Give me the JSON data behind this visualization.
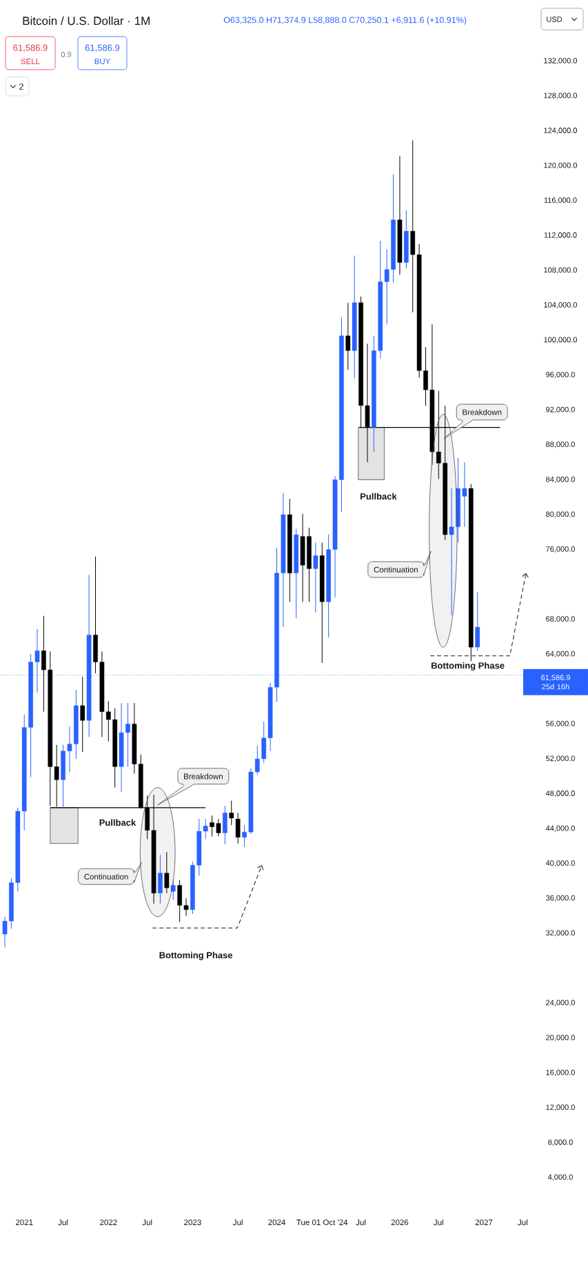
{
  "chart_data": {
    "type": "candlestick",
    "title": "Bitcoin / U.S. Dollar · 1M",
    "subtitle": "O63,325.0 H71,374.9 L58,888.0 C70,250.1 +6,911.6 (+10.91%)",
    "categories": [
      null,
      null,
      null,
      "2021",
      null,
      null,
      null,
      null,
      null,
      "Jul",
      null,
      null,
      null,
      null,
      null,
      null,
      "2022",
      null,
      null,
      null,
      null,
      null,
      "Jul",
      null,
      null,
      null,
      null,
      null,
      null,
      "2023",
      null,
      null,
      null,
      null,
      null,
      null,
      "Jul",
      null,
      null,
      null,
      null,
      null,
      "2024",
      null,
      null,
      null,
      null,
      null,
      null,
      "Tue 01 Oct '24",
      null,
      null,
      null,
      null,
      null,
      "Jul",
      null,
      null,
      null,
      null,
      null,
      "2026",
      null,
      null,
      null,
      null,
      null,
      "Jul",
      null,
      null,
      null,
      null,
      null,
      null,
      "2027",
      null,
      null,
      null,
      null,
      null,
      "Jul",
      null,
      null
    ],
    "ohlc": [
      [
        31900,
        33900,
        30400,
        33400
      ],
      [
        33400,
        38300,
        32500,
        37800
      ],
      [
        37800,
        46400,
        36800,
        46000
      ],
      [
        46000,
        57100,
        43800,
        55600
      ],
      [
        55600,
        64000,
        49900,
        63100
      ],
      [
        63100,
        66900,
        59600,
        64400
      ],
      [
        64400,
        68400,
        57400,
        62200
      ],
      [
        62200,
        64300,
        46600,
        51100
      ],
      [
        51100,
        53600,
        46500,
        49600
      ],
      [
        49600,
        53600,
        46400,
        52900
      ],
      [
        52900,
        55700,
        50500,
        53700
      ],
      [
        53700,
        59900,
        52000,
        58100
      ],
      [
        58100,
        61400,
        52800,
        56400
      ],
      [
        56400,
        73100,
        54500,
        66200
      ],
      [
        66200,
        75200,
        61800,
        63100
      ],
      [
        63100,
        64300,
        54500,
        57400
      ],
      [
        57400,
        58600,
        54000,
        56500
      ],
      [
        56500,
        57800,
        48700,
        51100
      ],
      [
        51100,
        58400,
        48200,
        55000
      ],
      [
        55000,
        58400,
        51100,
        56000
      ],
      [
        56000,
        58400,
        50300,
        51400
      ],
      [
        51400,
        52500,
        46300,
        46400
      ],
      [
        46400,
        47800,
        42800,
        43800
      ],
      [
        43800,
        47900,
        35400,
        36600
      ],
      [
        36600,
        41000,
        35400,
        38900
      ],
      [
        38900,
        41300,
        36600,
        37200
      ],
      [
        36800,
        38100,
        35800,
        37500
      ],
      [
        37500,
        38100,
        33300,
        35200
      ],
      [
        35200,
        36000,
        34000,
        34700
      ],
      [
        34700,
        40200,
        34200,
        39800
      ],
      [
        39800,
        45100,
        38600,
        43700
      ],
      [
        43700,
        45100,
        42800,
        44300
      ],
      [
        44700,
        45500,
        43100,
        44200
      ],
      [
        44600,
        45100,
        43100,
        43500
      ],
      [
        43500,
        46600,
        42200,
        45800
      ],
      [
        45800,
        47200,
        44400,
        45200
      ],
      [
        45100,
        45800,
        42300,
        43000
      ],
      [
        43000,
        44400,
        41900,
        43600
      ],
      [
        43600,
        50900,
        43400,
        50500
      ],
      [
        50500,
        53500,
        50200,
        52000
      ],
      [
        52000,
        56300,
        51500,
        54400
      ],
      [
        54400,
        60700,
        52900,
        60200
      ],
      [
        60200,
        76200,
        58500,
        73300
      ],
      [
        73300,
        82500,
        67100,
        80000
      ],
      [
        80000,
        81800,
        70000,
        73300
      ],
      [
        73300,
        78400,
        68100,
        77700
      ],
      [
        77500,
        80100,
        70000,
        74200
      ],
      [
        77500,
        78500,
        70000,
        73800
      ],
      [
        73800,
        76800,
        68800,
        75300
      ],
      [
        75300,
        76800,
        63000,
        70000
      ],
      [
        70000,
        77700,
        65900,
        76000
      ],
      [
        76000,
        84400,
        70500,
        84000
      ],
      [
        84000,
        102600,
        80300,
        100500
      ],
      [
        100500,
        104300,
        96600,
        98800
      ],
      [
        98800,
        109700,
        95600,
        104300
      ],
      [
        104300,
        105000,
        90000,
        92500
      ],
      [
        92500,
        99600,
        86000,
        90000
      ],
      [
        90000,
        100500,
        87200,
        98800
      ],
      [
        98800,
        111400,
        97900,
        106700
      ],
      [
        106700,
        110400,
        101800,
        108100
      ],
      [
        108100,
        119000,
        106600,
        113800
      ],
      [
        113800,
        121100,
        107500,
        108900
      ],
      [
        108900,
        114900,
        108200,
        112500
      ],
      [
        112500,
        122900,
        103200,
        109800
      ],
      [
        109800,
        111000,
        95700,
        96500
      ],
      [
        96500,
        99200,
        92500,
        94300
      ],
      [
        94300,
        101800,
        85700,
        87200
      ],
      [
        87200,
        94200,
        84100,
        85900
      ],
      [
        85900,
        92500,
        77100,
        77700
      ],
      [
        77700,
        83000,
        68500,
        78600
      ],
      [
        78600,
        86500,
        76800,
        83000
      ],
      [
        82100,
        86000,
        78600,
        83000
      ],
      [
        83000,
        83500,
        63200,
        64800
      ],
      [
        64800,
        71100,
        64400,
        67100
      ],
      null,
      null,
      null,
      null,
      null,
      null,
      null,
      null,
      null
    ],
    "colors": [
      "#2962ff",
      "#2962ff",
      "#2962ff",
      "#2962ff",
      "#2962ff",
      "#2962ff",
      "#000000",
      "#000000",
      "#000000",
      "#2962ff",
      "#2962ff",
      "#2962ff",
      "#000000",
      "#2962ff",
      "#000000",
      "#000000",
      "#000000",
      "#000000",
      "#2962ff",
      "#2962ff",
      "#000000",
      "#000000",
      "#000000",
      "#000000",
      "#2962ff",
      "#000000",
      "#2962ff",
      "#000000",
      "#000000",
      "#2962ff",
      "#2962ff",
      "#2962ff",
      "#000000",
      "#000000",
      "#2962ff",
      "#000000",
      "#000000",
      "#2962ff",
      "#2962ff",
      "#2962ff",
      "#2962ff",
      "#2962ff",
      "#2962ff",
      "#2962ff",
      "#000000",
      "#2962ff",
      "#000000",
      "#000000",
      "#2962ff",
      "#000000",
      "#2962ff",
      "#2962ff",
      "#2962ff",
      "#000000",
      "#2962ff",
      "#000000",
      "#000000",
      "#2962ff",
      "#2962ff",
      "#2962ff",
      "#2962ff",
      "#000000",
      "#2962ff",
      "#000000",
      "#000000",
      "#000000",
      "#000000",
      "#000000",
      "#000000",
      "#2962ff",
      "#2962ff",
      "#2962ff",
      "#000000",
      "#2962ff",
      null,
      null,
      null,
      null,
      null,
      null,
      null,
      null,
      null
    ],
    "ylim": [
      4000,
      132000
    ],
    "yticks": [
      {
        "value": 4000,
        "label": "4,000.0"
      },
      {
        "value": 8000,
        "label": "8,000.0"
      },
      {
        "value": 12000,
        "label": "12,000.0"
      },
      {
        "value": 16000,
        "label": "16,000.0"
      },
      {
        "value": 20000,
        "label": "20,000.0"
      },
      {
        "value": 24000,
        "label": "24,000.0"
      },
      {
        "value": 32000,
        "label": "32,000.0"
      },
      {
        "value": 36000,
        "label": "36,000.0"
      },
      {
        "value": 40000,
        "label": "40,000.0"
      },
      {
        "value": 44000,
        "label": "44,000.0"
      },
      {
        "value": 48000,
        "label": "48,000.0"
      },
      {
        "value": 52000,
        "label": "52,000.0"
      },
      {
        "value": 56000,
        "label": "56,000.0"
      },
      {
        "value": 64000,
        "label": "64,000.0"
      },
      {
        "value": 68000,
        "label": "68,000.0"
      },
      {
        "value": 76000,
        "label": "76,000.0"
      },
      {
        "value": 80000,
        "label": "80,000.0"
      },
      {
        "value": 84000,
        "label": "84,000.0"
      },
      {
        "value": 88000,
        "label": "88,000.0"
      },
      {
        "value": 92000,
        "label": "92,000.0"
      },
      {
        "value": 96000,
        "label": "96,000.0"
      },
      {
        "value": 100000,
        "label": "100,000.0"
      },
      {
        "value": 104000,
        "label": "104,000.0"
      },
      {
        "value": 108000,
        "label": "108,000.0"
      },
      {
        "value": 112000,
        "label": "112,000.0"
      },
      {
        "value": 116000,
        "label": "116,000.0"
      },
      {
        "value": 120000,
        "label": "120,000.0"
      },
      {
        "value": 124000,
        "label": "124,000.0"
      },
      {
        "value": 128000,
        "label": "128,000.0"
      },
      {
        "value": 132000,
        "label": "132,000.0"
      }
    ],
    "ref_lines": [
      {
        "axis": "y",
        "value": 61586.9,
        "label": "61,586.9 25d 16h",
        "color": "#2962ff",
        "line_style": "dotted"
      },
      {
        "axis": "y",
        "value": 46400,
        "color": "#000000",
        "line_style": "solid"
      },
      {
        "axis": "y",
        "value": 90000,
        "color": "#000000",
        "line_style": "solid"
      }
    ],
    "annotations": [
      "61,586.9",
      "SELL",
      "0.9",
      "61,586.9",
      "BUY",
      "2",
      "USD",
      "Pullback",
      "Breakdown",
      "Continuation",
      "Bottoming Phase",
      "Pullback",
      "Breakdown",
      "Continuation",
      "Bottoming Phase"
    ]
  }
}
